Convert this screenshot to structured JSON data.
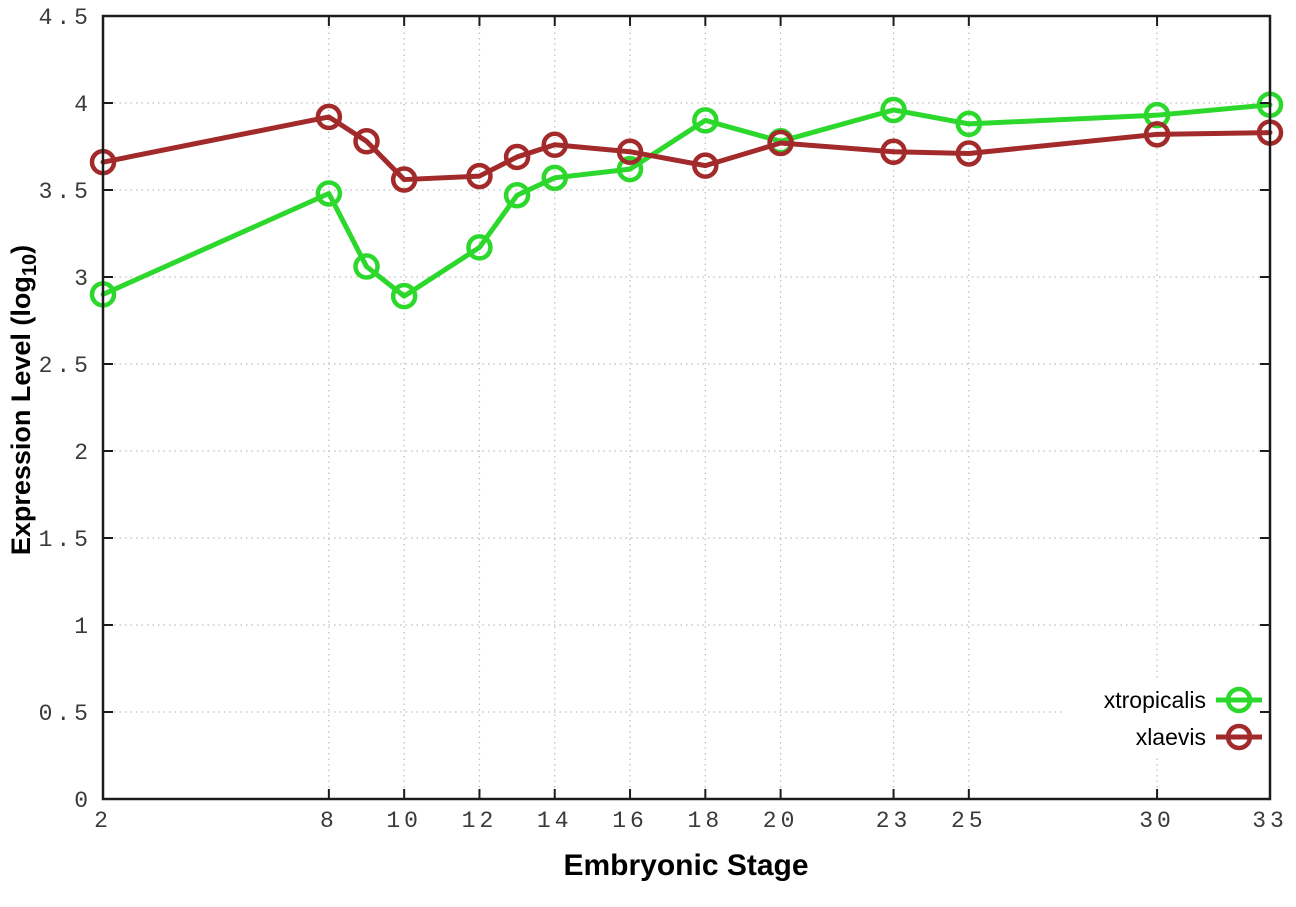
{
  "chart_data": {
    "type": "line",
    "title": "",
    "xlabel": "Embryonic Stage",
    "ylabel": "Expression Level (log10)",
    "ylabel_parts": {
      "prefix": "Expression Level (log",
      "subscript": "10",
      "suffix": ")"
    },
    "x": [
      2,
      8,
      9,
      10,
      12,
      13,
      14,
      16,
      18,
      20,
      23,
      25,
      30,
      33
    ],
    "xtick_labels": [
      "2",
      "8",
      "10",
      "12",
      "14",
      "16",
      "18",
      "20",
      "23",
      "25",
      "30",
      "33"
    ],
    "xtick_values": [
      2,
      8,
      10,
      12,
      14,
      16,
      18,
      20,
      23,
      25,
      30,
      33
    ],
    "ytick_labels": [
      "0",
      "0.5",
      "1",
      "1.5",
      "2",
      "2.5",
      "3",
      "3.5",
      "4",
      "4.5"
    ],
    "ytick_values": [
      0,
      0.5,
      1,
      1.5,
      2,
      2.5,
      3,
      3.5,
      4,
      4.5
    ],
    "xlim": [
      2,
      33
    ],
    "ylim": [
      0,
      4.5
    ],
    "grid": true,
    "legend_position": "inside-bottom-right",
    "series": [
      {
        "name": "xtropicalis",
        "color": "#2bd82b",
        "marker": "open-circle",
        "values": [
          2.9,
          3.48,
          3.06,
          2.89,
          3.17,
          3.47,
          3.57,
          3.62,
          3.9,
          3.78,
          3.96,
          3.88,
          3.93,
          3.99
        ]
      },
      {
        "name": "xlaevis",
        "color": "#a32a2a",
        "marker": "open-circle",
        "values": [
          3.66,
          3.92,
          3.78,
          3.56,
          3.58,
          3.69,
          3.76,
          3.72,
          3.64,
          3.77,
          3.72,
          3.71,
          3.82,
          3.83
        ]
      }
    ],
    "colors": {
      "axis": "#1c1c1c",
      "grid": "#bdbdbd",
      "tick_text": "#3a3a3a",
      "title_text": "#000000",
      "background": "#ffffff"
    }
  }
}
